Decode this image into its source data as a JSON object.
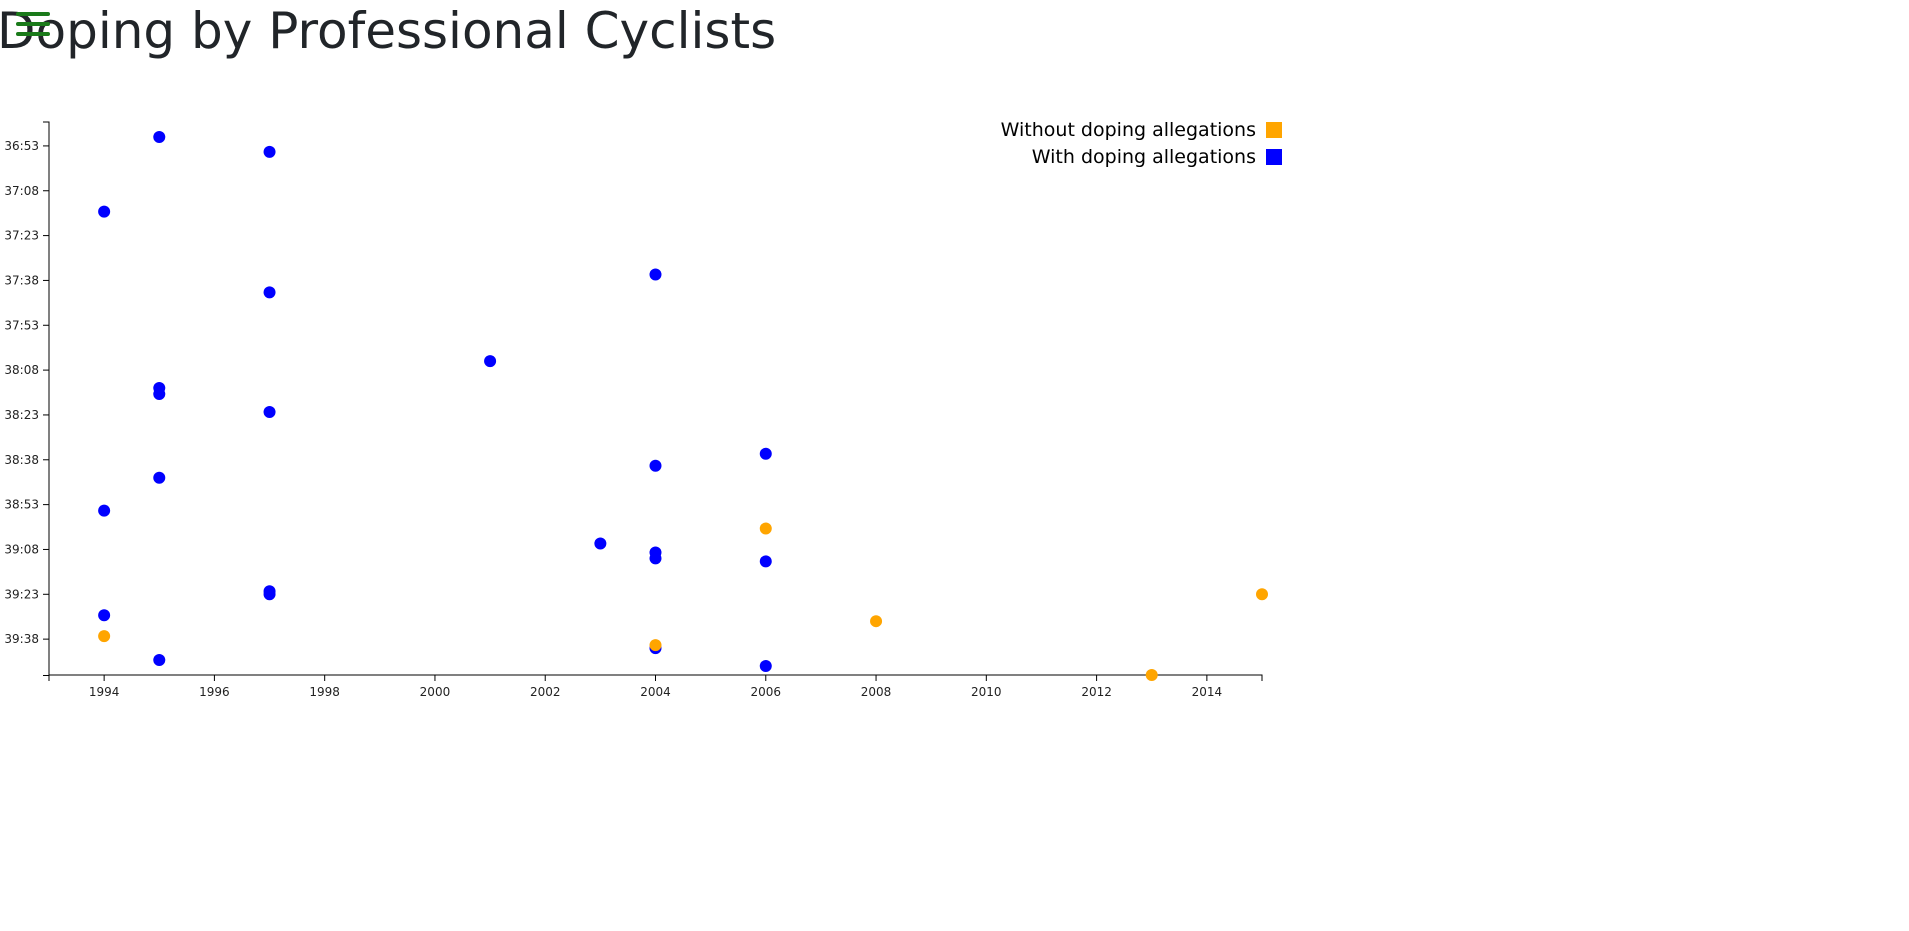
{
  "page": {
    "title": "Doping by Professional Cyclists"
  },
  "menu": {
    "icon": "hamburger-menu-icon",
    "color": "#1a7a1a"
  },
  "legend": {
    "items": [
      {
        "label": "Without doping allegations",
        "color": "#ffa500"
      },
      {
        "label": "With doping allegations",
        "color": "#0000ff"
      }
    ]
  },
  "chart_data": {
    "type": "scatter",
    "title": "Doping by Professional Cyclists",
    "xlabel": "",
    "ylabel": "",
    "x_ticks": [
      "1994",
      "1996",
      "1998",
      "2000",
      "2002",
      "2004",
      "2006",
      "2008",
      "2010",
      "2012",
      "2014"
    ],
    "y_ticks": [
      "36:53",
      "37:08",
      "37:23",
      "37:38",
      "37:53",
      "38:08",
      "38:23",
      "38:38",
      "38:53",
      "39:08",
      "39:23",
      "39:38"
    ],
    "xlim": [
      1993,
      2015
    ],
    "ylim_seconds": [
      2205,
      2390
    ],
    "y_inverted": true,
    "grid": false,
    "legend_position": "top-right",
    "series": [
      {
        "name": "With doping allegations",
        "color": "#0000ff",
        "points": [
          {
            "year": 1995,
            "time": "36:50"
          },
          {
            "year": 1997,
            "time": "36:55"
          },
          {
            "year": 1994,
            "time": "37:15"
          },
          {
            "year": 2004,
            "time": "37:36"
          },
          {
            "year": 1997,
            "time": "37:42"
          },
          {
            "year": 2001,
            "time": "38:05"
          },
          {
            "year": 1995,
            "time": "38:14"
          },
          {
            "year": 1995,
            "time": "38:16"
          },
          {
            "year": 1997,
            "time": "38:22"
          },
          {
            "year": 2006,
            "time": "38:36"
          },
          {
            "year": 2004,
            "time": "38:40"
          },
          {
            "year": 1995,
            "time": "38:44"
          },
          {
            "year": 1994,
            "time": "38:55"
          },
          {
            "year": 2003,
            "time": "39:06"
          },
          {
            "year": 2004,
            "time": "39:09"
          },
          {
            "year": 2004,
            "time": "39:11"
          },
          {
            "year": 2006,
            "time": "39:12"
          },
          {
            "year": 1997,
            "time": "39:22"
          },
          {
            "year": 1997,
            "time": "39:23"
          },
          {
            "year": 1994,
            "time": "39:30"
          },
          {
            "year": 2004,
            "time": "39:41"
          },
          {
            "year": 1995,
            "time": "39:45"
          },
          {
            "year": 2006,
            "time": "39:47"
          }
        ]
      },
      {
        "name": "Without doping allegations",
        "color": "#ffa500",
        "points": [
          {
            "year": 2006,
            "time": "39:01"
          },
          {
            "year": 2015,
            "time": "39:23"
          },
          {
            "year": 2008,
            "time": "39:32"
          },
          {
            "year": 1994,
            "time": "39:37"
          },
          {
            "year": 2004,
            "time": "39:40"
          },
          {
            "year": 2013,
            "time": "39:50"
          }
        ]
      }
    ]
  }
}
